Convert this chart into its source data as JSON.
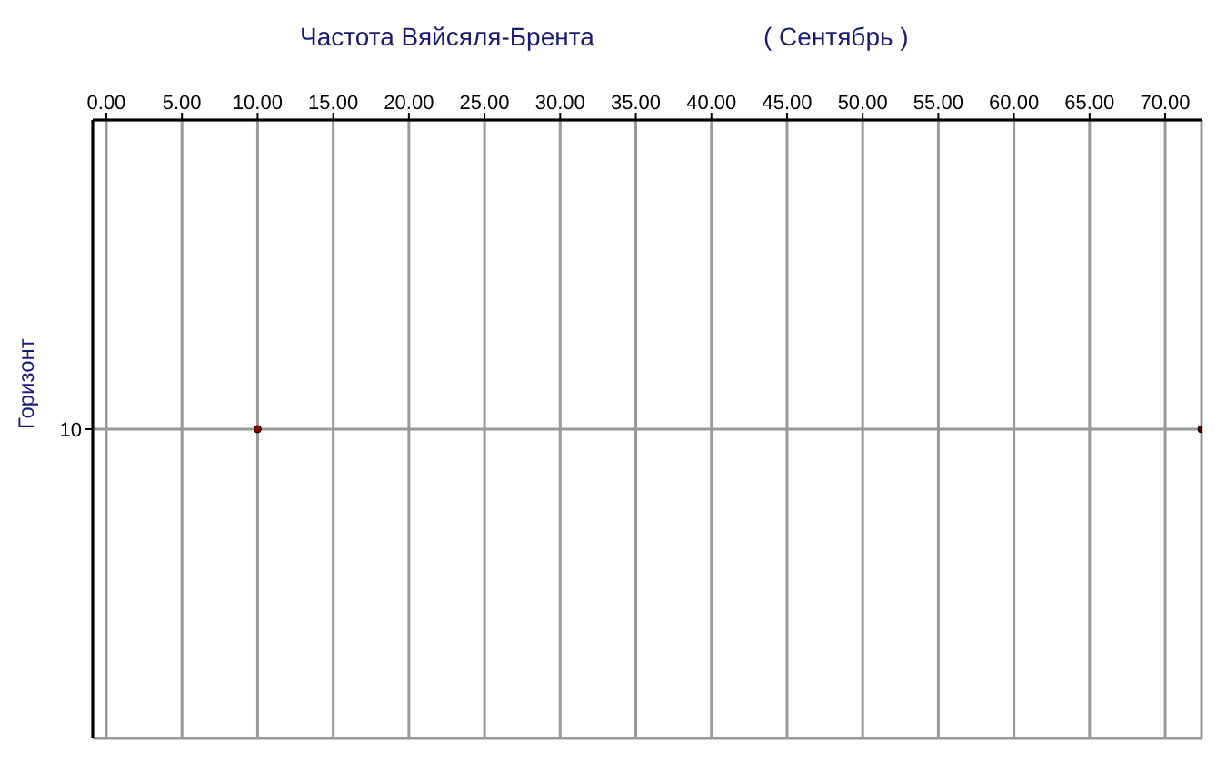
{
  "chart_data": {
    "type": "scatter",
    "orientation": "horizontal",
    "title": "Частота Вяйсяля-Брента",
    "subtitle": "( Сентябрь )",
    "ylabel": "Горизонт",
    "categories": [
      "10"
    ],
    "series": [
      {
        "color": "#800000",
        "values": [
          10
        ]
      },
      {
        "color": "#400000",
        "values": [
          72.4
        ]
      }
    ],
    "xlim": [
      -0.9,
      72.4
    ],
    "xticks": [
      {
        "value": 0,
        "label": "0.00"
      },
      {
        "value": 5,
        "label": "5.00"
      },
      {
        "value": 10,
        "label": "10.00"
      },
      {
        "value": 15,
        "label": "15.00"
      },
      {
        "value": 20,
        "label": "20.00"
      },
      {
        "value": 25,
        "label": "25.00"
      },
      {
        "value": 30,
        "label": "30.00"
      },
      {
        "value": 35,
        "label": "35.00"
      },
      {
        "value": 40,
        "label": "40.00"
      },
      {
        "value": 45,
        "label": "45.00"
      },
      {
        "value": 50,
        "label": "50.00"
      },
      {
        "value": 55,
        "label": "55.00"
      },
      {
        "value": 60,
        "label": "60.00"
      },
      {
        "value": 65,
        "label": "65.00"
      },
      {
        "value": 70,
        "label": "70.00"
      }
    ],
    "grid": true,
    "marker": "circle"
  }
}
